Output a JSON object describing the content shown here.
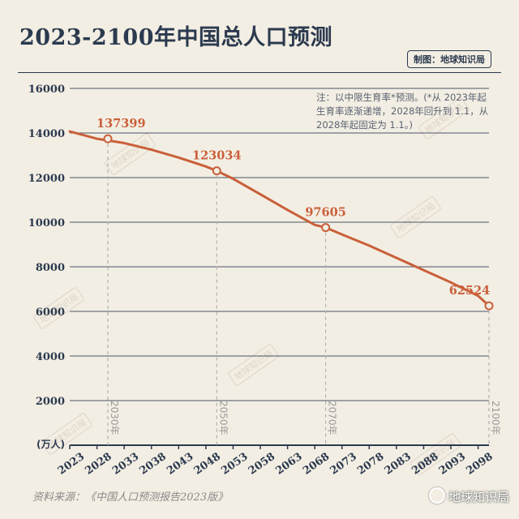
{
  "header": {
    "title": "2023-2100年中国总人口预测",
    "credit": "制图：地球知识局"
  },
  "note": "注：以中限生育率*预测。(*从 2023年起生育率逐渐递增，2028年回升到 1.1，从 2028年起固定为 1.1。)",
  "source": "资料来源：《中国人口预测报告2023版》",
  "brand": "地球知识局",
  "watermark": "地球知识局",
  "colors": {
    "line": "#c9603a",
    "label": "#c9603a",
    "axis": "#2b3a4f",
    "grid": "#2b3a4f",
    "marker_line": "#b0b0b0"
  },
  "chart_data": {
    "type": "line",
    "title": "2023-2100年中国总人口预测",
    "ylabel": "(万人)",
    "xlabel": "",
    "ylim": [
      0,
      16000
    ],
    "yticks": [
      2000,
      4000,
      6000,
      8000,
      10000,
      12000,
      14000,
      16000
    ],
    "xlim": [
      2023,
      2100
    ],
    "xticks": [
      2023,
      2028,
      2033,
      2038,
      2043,
      2048,
      2053,
      2058,
      2063,
      2068,
      2073,
      2078,
      2083,
      2088,
      2093,
      2098
    ],
    "grid": true,
    "series": [
      {
        "x": [
          2023,
          2028,
          2033,
          2038,
          2043,
          2048,
          2050,
          2053,
          2058,
          2063,
          2068,
          2070,
          2073,
          2078,
          2083,
          2088,
          2093,
          2098,
          2100
        ],
        "y": [
          14070,
          13740,
          13550,
          13250,
          12900,
          12500,
          12303,
          11950,
          11250,
          10550,
          9880,
          9761,
          9450,
          8950,
          8400,
          7850,
          7300,
          6700,
          6252
        ]
      }
    ],
    "highlights": [
      {
        "x": 2030,
        "y": 13740,
        "label": "137399",
        "marker_label": "2030年"
      },
      {
        "x": 2050,
        "y": 12303,
        "label": "123034",
        "marker_label": "2050年"
      },
      {
        "x": 2070,
        "y": 9761,
        "label": "97605",
        "marker_label": "2070年"
      },
      {
        "x": 2100,
        "y": 6252,
        "label": "62524",
        "marker_label": "2100年"
      }
    ]
  }
}
